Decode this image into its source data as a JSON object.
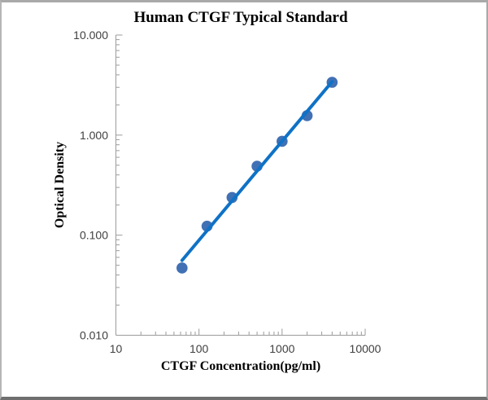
{
  "window": {
    "background": "#ffffff",
    "frame_border_color": "#a9a9a9",
    "frame_bottom_border_color": "#6f6f6f"
  },
  "colors": {
    "line": "#0f72c6",
    "marker": "#4170b4",
    "axis": "#9b9b9b",
    "tick_label": "#404040",
    "title": "#000000"
  },
  "chart_data": {
    "type": "scatter",
    "title": "Human CTGF Typical Standard",
    "xlabel": "CTGF Concentration(pg/ml)",
    "ylabel": "Optical Density",
    "x_scale": "log",
    "y_scale": "log",
    "xlim": [
      10,
      10000
    ],
    "ylim": [
      0.01,
      10
    ],
    "x_ticks": [
      10,
      100,
      1000,
      10000
    ],
    "x_tick_labels": [
      "10",
      "100",
      "1000",
      "10000"
    ],
    "y_ticks": [
      10,
      1,
      0.1,
      0.01
    ],
    "y_tick_labels": [
      "10.000",
      "1.000",
      "0.100",
      "0.010"
    ],
    "grid": false,
    "legend": false,
    "series": [
      {
        "name": "Typical Standard",
        "x": [
          62.5,
          125,
          250,
          500,
          1000,
          2000,
          4000
        ],
        "y": [
          0.047,
          0.123,
          0.238,
          0.489,
          0.867,
          1.564,
          3.371
        ],
        "marker": "circle",
        "trendline": true
      }
    ]
  }
}
